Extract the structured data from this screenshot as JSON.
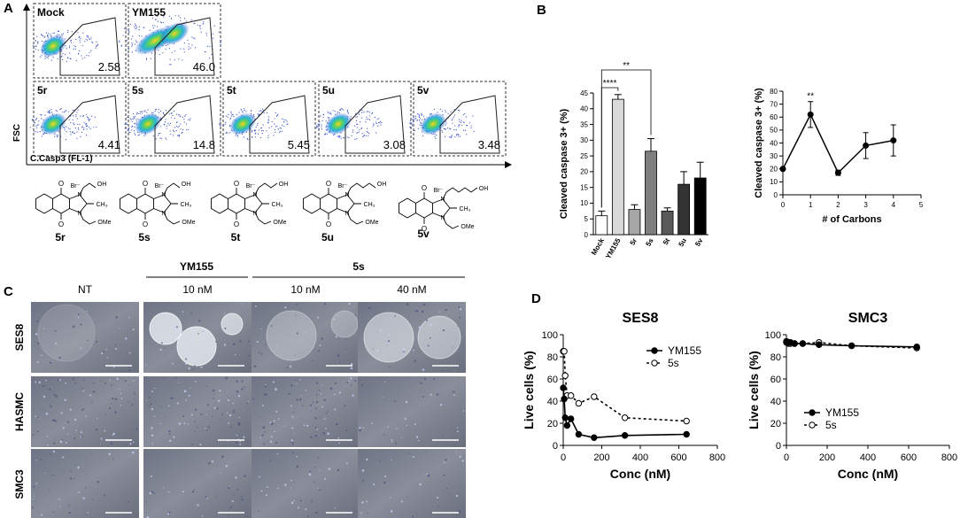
{
  "panel_labels": [
    "A",
    "B",
    "C",
    "D"
  ],
  "panel_a": {
    "plots": [
      {
        "name": "Mock",
        "value": "2.58"
      },
      {
        "name": "YM155",
        "value": "46.0"
      },
      {
        "name": "5r",
        "value": "4.41"
      },
      {
        "name": "5s",
        "value": "14.8"
      },
      {
        "name": "5t",
        "value": "5.45"
      },
      {
        "name": "5u",
        "value": "3.08"
      },
      {
        "name": "5v",
        "value": "3.48"
      }
    ],
    "y_label": "FSC",
    "x_label": "C.Casp3 (FL-1)",
    "compounds": [
      "5r",
      "5s",
      "5t",
      "5u",
      "5v"
    ],
    "atoms": {
      "o": "O",
      "n": "N",
      "br": "Br⁻",
      "oh": "OH",
      "ch3": "CH₃",
      "ome": "OMe"
    }
  },
  "panel_c": {
    "groups": [
      "YM155",
      "5s"
    ],
    "columns": [
      "NT",
      "10 nM",
      "10 nM",
      "40 nM"
    ],
    "rows": [
      "SES8",
      "HASMC",
      "SMC3"
    ]
  },
  "chart_data": [
    {
      "type": "bar",
      "y_label": "Cleaved caspase 3+ (%)",
      "categories": [
        "Mock",
        "YM155",
        "5r",
        "5s",
        "5t",
        "5u",
        "5v"
      ],
      "values": [
        6,
        43,
        8,
        26.5,
        7.5,
        16,
        18
      ],
      "errors": [
        1.5,
        1.5,
        1.5,
        4,
        1,
        4,
        5
      ],
      "colors": [
        "#ffffff",
        "#d9d9d9",
        "#a6a6a6",
        "#7f7f7f",
        "#595959",
        "#333333",
        "#000000"
      ],
      "ylim": [
        0,
        45
      ],
      "yticks": [
        0,
        5,
        10,
        15,
        20,
        25,
        30,
        35,
        40,
        45
      ],
      "annotations": [
        "****",
        "**"
      ]
    },
    {
      "type": "line",
      "y_label": "Cleaved caspase 3+ (%)",
      "x_label": "# of Carbons",
      "x": [
        0,
        1,
        2,
        3,
        4
      ],
      "values": [
        20,
        62,
        17,
        38,
        42
      ],
      "errors": [
        0,
        10,
        2,
        10,
        12
      ],
      "color": "#000000",
      "xlim": [
        0,
        5
      ],
      "xticks": [
        0,
        1,
        2,
        3,
        4,
        5
      ],
      "ylim": [
        0,
        80
      ],
      "yticks": [
        0,
        10,
        20,
        30,
        40,
        50,
        60,
        70,
        80
      ],
      "annotations": [
        "**"
      ]
    },
    {
      "type": "line",
      "title": "SES8",
      "y_label": "Live cells (%)",
      "x_label": "Conc (nM)",
      "x": [
        0,
        5,
        10,
        20,
        40,
        80,
        160,
        320,
        640
      ],
      "series": [
        {
          "name": "YM155",
          "color": "#000000",
          "marker": "filled",
          "dashed": false,
          "values": [
            52,
            42,
            25,
            18,
            24,
            10,
            7,
            9,
            10
          ]
        },
        {
          "name": "5s",
          "color": "#000000",
          "marker": "open",
          "dashed": true,
          "values": [
            85,
            85,
            63,
            45,
            45,
            38,
            44,
            25,
            22
          ]
        }
      ],
      "xlim": [
        0,
        800
      ],
      "xticks": [
        0,
        200,
        400,
        600,
        800
      ],
      "ylim": [
        0,
        100
      ],
      "yticks": [
        0,
        20,
        40,
        60,
        80,
        100
      ],
      "legend": "upper right"
    },
    {
      "type": "line",
      "title": "SMC3",
      "y_label": "Live cells (%)",
      "x_label": "Conc (nM)",
      "x": [
        0,
        5,
        10,
        20,
        40,
        80,
        160,
        320,
        640
      ],
      "series": [
        {
          "name": "YM155",
          "color": "#000000",
          "marker": "filled",
          "dashed": false,
          "values": [
            94,
            93,
            93,
            93,
            92,
            92,
            91,
            90,
            89
          ]
        },
        {
          "name": "5s",
          "color": "#000000",
          "marker": "open",
          "dashed": true,
          "values": [
            93,
            93,
            92,
            92,
            92,
            92,
            93,
            90,
            88
          ]
        }
      ],
      "xlim": [
        0,
        800
      ],
      "xticks": [
        0,
        200,
        400,
        600,
        800
      ],
      "ylim": [
        0,
        100
      ],
      "yticks": [
        0,
        20,
        40,
        60,
        80,
        100
      ],
      "legend": "center left"
    }
  ]
}
